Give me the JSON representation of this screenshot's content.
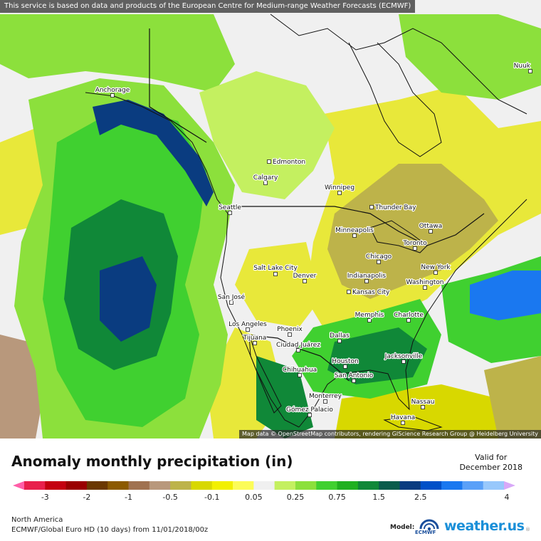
{
  "notice": "This service is based on data and products of the European Centre for Medium-range Weather Forecasts (ECMWF)",
  "attribution": "Map data © OpenStreetMap contributors, rendering GIScience Research Group @ Heidelberg University",
  "title": "Anomaly monthly precipitation (in)",
  "valid_label": "Valid for",
  "valid_date": "December 2018",
  "region": "North America",
  "model_run": "ECMWF/Global Euro HD (10 days) from 11/01/2018/00z",
  "model_tag": "Model:",
  "model_logo_text": "ECMWF",
  "brand": "weather.us",
  "legend": {
    "colors": [
      "#ff5fa8",
      "#e8204c",
      "#c40010",
      "#9a0000",
      "#6b3800",
      "#8c5a00",
      "#a07250",
      "#b8987c",
      "#bdb34a",
      "#d8d800",
      "#f2f000",
      "#fcfc58",
      "#f0f0f0",
      "#c4f060",
      "#8ce03c",
      "#40d030",
      "#20b020",
      "#108838",
      "#0a5c4c",
      "#0a3c80",
      "#0050c8",
      "#1a78f0",
      "#5aa0f8",
      "#98c8fc",
      "#d8a8f8"
    ],
    "tick_labels": [
      "-3",
      "-2",
      "-1",
      "-0.5",
      "-0.1",
      "0.05",
      "0.25",
      "0.75",
      "1.5",
      "2.5",
      "4"
    ]
  },
  "cities": [
    {
      "name": "Anchorage"
    },
    {
      "name": "Edmonton"
    },
    {
      "name": "Calgary"
    },
    {
      "name": "Winnipeg"
    },
    {
      "name": "Thunder Bay"
    },
    {
      "name": "Seattle"
    },
    {
      "name": "Minneapolis"
    },
    {
      "name": "Ottawa"
    },
    {
      "name": "Toronto"
    },
    {
      "name": "Salt Lake City"
    },
    {
      "name": "Chicago"
    },
    {
      "name": "Denver"
    },
    {
      "name": "New York"
    },
    {
      "name": "Indianapolis"
    },
    {
      "name": "Washington"
    },
    {
      "name": "Kansas City"
    },
    {
      "name": "San José"
    },
    {
      "name": "Memphis"
    },
    {
      "name": "Charlotte"
    },
    {
      "name": "Los Angeles"
    },
    {
      "name": "Phoenix"
    },
    {
      "name": "Dallas"
    },
    {
      "name": "Tijuana"
    },
    {
      "name": "Ciudad Juárez"
    },
    {
      "name": "Jacksonville"
    },
    {
      "name": "Houston"
    },
    {
      "name": "Chihuahua"
    },
    {
      "name": "San Antonio"
    },
    {
      "name": "Monterrey"
    },
    {
      "name": "Nassau"
    },
    {
      "name": "Gómez Palacio"
    },
    {
      "name": "Havana"
    },
    {
      "name": "Nuuk"
    }
  ]
}
